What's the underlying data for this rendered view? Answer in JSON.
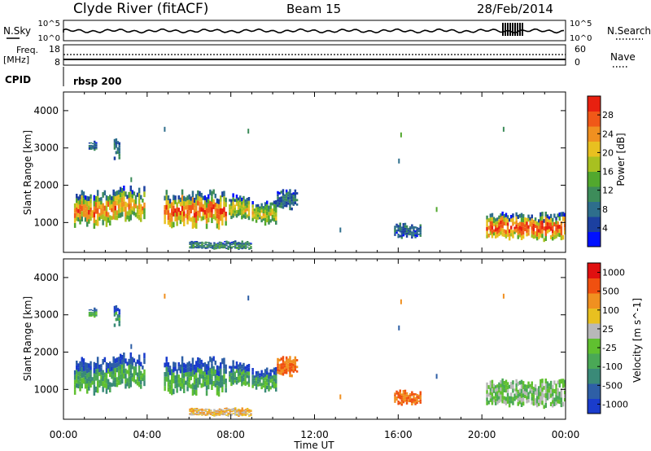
{
  "header": {
    "title": "Clyde River (fitACF)",
    "beam": "Beam 15",
    "date": "28/Feb/2014"
  },
  "summary": {
    "nsky_label": "N.Sky",
    "nsky_ticks": [
      "10^5",
      "10^0"
    ],
    "nsearch_label": "N.Search",
    "nsearch_ticks": [
      "10^5",
      "10^0"
    ],
    "freq_label_1": "Freq.",
    "freq_label_2": "[MHz]",
    "freq_ticks": [
      "18",
      "8"
    ],
    "nave_label": "Nave",
    "nave_ticks": [
      "60",
      "0"
    ],
    "cpid_label": "CPID",
    "cpid_value": "rbsp 200"
  },
  "chart_data": [
    {
      "type": "heatmap",
      "name": "power",
      "ylabel": "Slant Range [km]",
      "ylim": [
        200,
        4500
      ],
      "yticks": [
        1000,
        2000,
        3000,
        4000
      ],
      "xlim": [
        0,
        24
      ],
      "colorbar_label": "Power [dB]",
      "colorbar_ticks": [
        "4",
        "8",
        "12",
        "16",
        "20",
        "24",
        "28"
      ],
      "colorbar_range": [
        0,
        32
      ],
      "colors": [
        "#0010ff",
        "#1c40a0",
        "#2e6e8c",
        "#3d8c5a",
        "#52a82e",
        "#a8c020",
        "#e8c020",
        "#f09020",
        "#f05818",
        "#e82010"
      ]
    },
    {
      "type": "heatmap",
      "name": "velocity",
      "ylabel": "Slant Range [km]",
      "ylim": [
        200,
        4500
      ],
      "yticks": [
        1000,
        2000,
        3000,
        4000
      ],
      "xlim": [
        0,
        24
      ],
      "colorbar_label": "Velocity [m s^-1]",
      "colorbar_ticks": [
        "1000",
        "500",
        "100",
        "25",
        "-25",
        "-100",
        "-500",
        "-1000"
      ],
      "colors": [
        "#1a3ccc",
        "#2e5fa6",
        "#3a8a78",
        "#4aa856",
        "#60c030",
        "#b8b8b8",
        "#e8c020",
        "#f09020",
        "#f05010",
        "#e01010"
      ]
    }
  ],
  "xaxis": {
    "label": "Time UT",
    "ticks": [
      "00:00",
      "04:00",
      "08:00",
      "12:00",
      "16:00",
      "20:00",
      "00:00"
    ]
  }
}
